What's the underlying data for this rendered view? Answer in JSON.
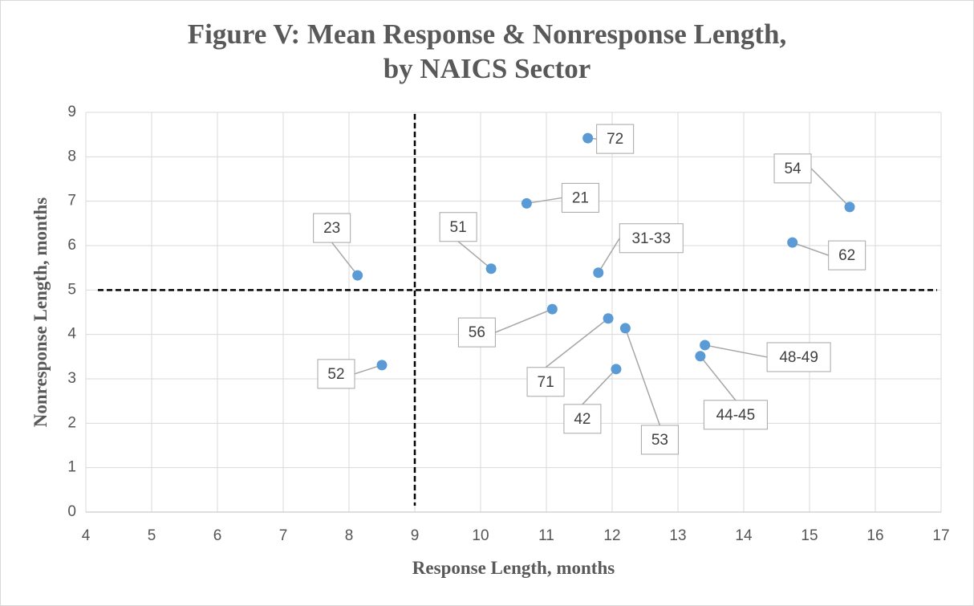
{
  "chart_data": {
    "type": "scatter",
    "title": [
      "Figure V:  Mean Response & Nonresponse Length,",
      "by NAICS Sector"
    ],
    "x_label": "Response Length, months",
    "y_label": "Nonresponse Length, months",
    "labels": [
      "72",
      "54",
      "21",
      "62",
      "23",
      "51",
      "31-33",
      "56",
      "71",
      "53",
      "48-49",
      "44-45",
      "52",
      "42"
    ],
    "x": [
      11.63,
      15.61,
      10.7,
      14.74,
      8.13,
      10.16,
      11.79,
      11.09,
      11.94,
      12.2,
      13.41,
      13.34,
      8.5,
      12.06
    ],
    "values": [
      8.42,
      6.87,
      6.95,
      6.07,
      5.33,
      5.48,
      5.39,
      4.57,
      4.36,
      4.14,
      3.76,
      3.51,
      3.31,
      3.22
    ],
    "color": "#5b9bd5",
    "vline": 9,
    "hline": 5,
    "xlim": [
      4,
      17
    ],
    "xticks": [
      4,
      5,
      6,
      7,
      8,
      9,
      10,
      11,
      12,
      13,
      14,
      15,
      16,
      17
    ],
    "ylim": [
      0,
      9
    ],
    "yticks": [
      0,
      1,
      2,
      3,
      4,
      5,
      6,
      7,
      8,
      9
    ],
    "grid": true
  }
}
